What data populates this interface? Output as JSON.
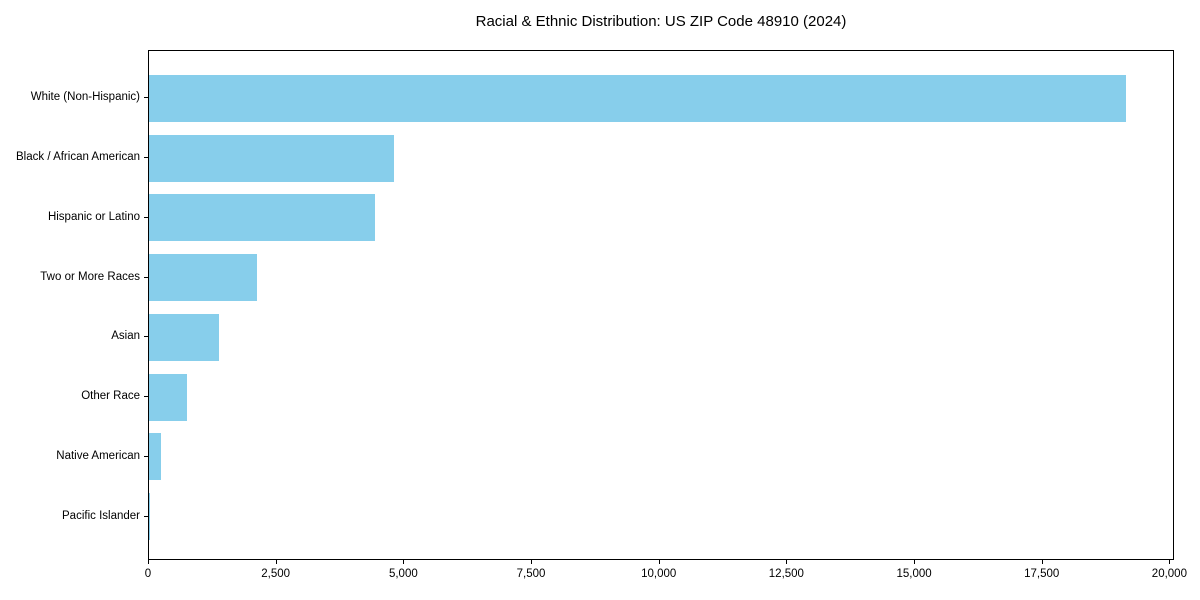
{
  "title": "Racial & Ethnic Distribution: US ZIP Code 48910 (2024)",
  "colors": {
    "bar": "#87CEEB",
    "spine": "#000000",
    "text": "#000000",
    "background": "#FFFFFF"
  },
  "chart_data": {
    "type": "bar",
    "orientation": "horizontal",
    "title": "Racial & Ethnic Distribution: US ZIP Code 48910 (2024)",
    "xlabel": "",
    "ylabel": "",
    "categories": [
      "White (Non-Hispanic)",
      "Black / African American",
      "Hispanic or Latino",
      "Two or More Races",
      "Asian",
      "Other Race",
      "Native American",
      "Pacific Islander"
    ],
    "values": [
      19140,
      4800,
      4420,
      2110,
      1370,
      745,
      230,
      15
    ],
    "xlim": [
      0,
      20090
    ],
    "xticks": [
      0,
      2500,
      5000,
      7500,
      10000,
      12500,
      15000,
      17500,
      20000
    ],
    "xtick_labels": [
      "0",
      "2,500",
      "5,000",
      "7,500",
      "10,000",
      "12,500",
      "15,000",
      "17,500",
      "20,000"
    ],
    "bar_color": "#87CEEB",
    "grid": false,
    "legend": null
  }
}
